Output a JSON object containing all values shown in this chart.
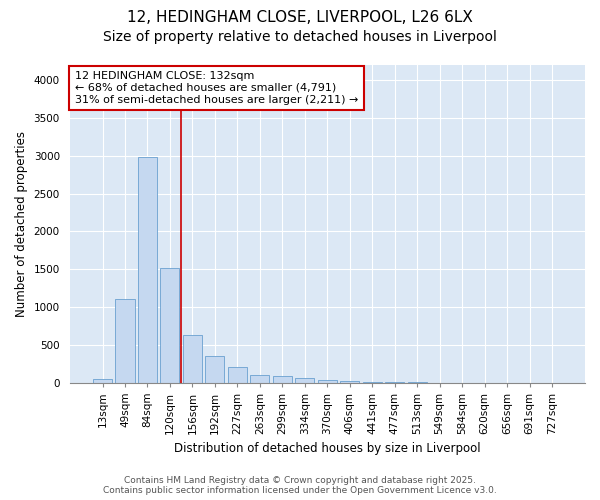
{
  "title_line1": "12, HEDINGHAM CLOSE, LIVERPOOL, L26 6LX",
  "title_line2": "Size of property relative to detached houses in Liverpool",
  "xlabel": "Distribution of detached houses by size in Liverpool",
  "ylabel": "Number of detached properties",
  "categories": [
    "13sqm",
    "49sqm",
    "84sqm",
    "120sqm",
    "156sqm",
    "192sqm",
    "227sqm",
    "263sqm",
    "299sqm",
    "334sqm",
    "370sqm",
    "406sqm",
    "441sqm",
    "477sqm",
    "513sqm",
    "549sqm",
    "584sqm",
    "620sqm",
    "656sqm",
    "691sqm",
    "727sqm"
  ],
  "values": [
    50,
    1100,
    2980,
    1520,
    630,
    350,
    210,
    95,
    90,
    55,
    35,
    20,
    5,
    2,
    1,
    0,
    0,
    0,
    0,
    0,
    0
  ],
  "bar_color": "#c5d8f0",
  "bar_edge_color": "#6aa0d0",
  "vline_color": "#cc0000",
  "annotation_text": "12 HEDINGHAM CLOSE: 132sqm\n← 68% of detached houses are smaller (4,791)\n31% of semi-detached houses are larger (2,211) →",
  "annotation_box_color": "white",
  "annotation_box_edge_color": "#cc0000",
  "ylim": [
    0,
    4200
  ],
  "yticks": [
    0,
    500,
    1000,
    1500,
    2000,
    2500,
    3000,
    3500,
    4000
  ],
  "figure_color": "#ffffff",
  "plot_area_color": "#dce8f5",
  "grid_color": "#ffffff",
  "footer_line1": "Contains HM Land Registry data © Crown copyright and database right 2025.",
  "footer_line2": "Contains public sector information licensed under the Open Government Licence v3.0.",
  "title_fontsize": 11,
  "subtitle_fontsize": 10,
  "axis_label_fontsize": 8.5,
  "tick_fontsize": 7.5,
  "annotation_fontsize": 8,
  "footer_fontsize": 6.5
}
